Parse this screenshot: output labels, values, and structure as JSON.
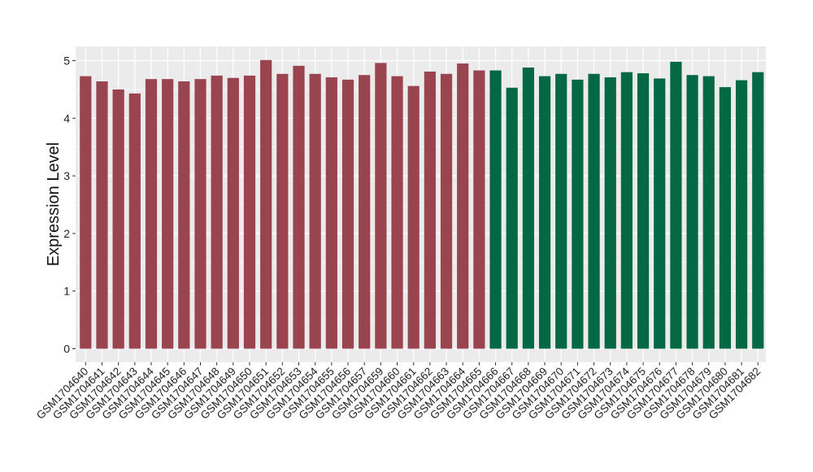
{
  "chart_data": {
    "type": "bar",
    "ylabel": "Expression Level",
    "xlabel": "",
    "ylim": [
      0,
      5.2
    ],
    "yticks": [
      0,
      1,
      2,
      3,
      4,
      5
    ],
    "grid": true,
    "colors": {
      "group_1": "#9a4450",
      "group_2": "#046845",
      "panel": "#ebebeb",
      "grid": "#ffffff"
    },
    "categories": [
      "GSM1704640",
      "GSM1704641",
      "GSM1704642",
      "GSM1704643",
      "GSM1704644",
      "GSM1704645",
      "GSM1704646",
      "GSM1704647",
      "GSM1704648",
      "GSM1704649",
      "GSM1704650",
      "GSM1704651",
      "GSM1704652",
      "GSM1704653",
      "GSM1704654",
      "GSM1704655",
      "GSM1704656",
      "GSM1704657",
      "GSM1704659",
      "GSM1704660",
      "GSM1704661",
      "GSM1704662",
      "GSM1704663",
      "GSM1704664",
      "GSM1704665",
      "GSM1704666",
      "GSM1704667",
      "GSM1704668",
      "GSM1704669",
      "GSM1704670",
      "GSM1704671",
      "GSM1704672",
      "GSM1704673",
      "GSM1704674",
      "GSM1704675",
      "GSM1704676",
      "GSM1704677",
      "GSM1704678",
      "GSM1704679",
      "GSM1704680",
      "GSM1704681",
      "GSM1704682"
    ],
    "values": [
      4.73,
      4.64,
      4.5,
      4.43,
      4.68,
      4.68,
      4.64,
      4.68,
      4.74,
      4.7,
      4.74,
      5.01,
      4.77,
      4.91,
      4.77,
      4.71,
      4.67,
      4.75,
      4.96,
      4.73,
      4.56,
      4.81,
      4.77,
      4.95,
      4.83,
      4.83,
      4.53,
      4.88,
      4.73,
      4.77,
      4.67,
      4.77,
      4.71,
      4.8,
      4.78,
      4.69,
      4.98,
      4.75,
      4.73,
      4.54,
      4.66,
      4.8
    ],
    "group_split_index": 25
  }
}
